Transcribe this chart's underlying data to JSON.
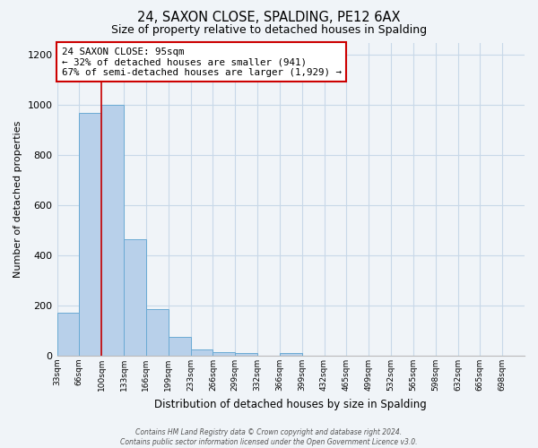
{
  "title": "24, SAXON CLOSE, SPALDING, PE12 6AX",
  "subtitle": "Size of property relative to detached houses in Spalding",
  "xlabel": "Distribution of detached houses by size in Spalding",
  "ylabel": "Number of detached properties",
  "bar_labels": [
    "33sqm",
    "66sqm",
    "100sqm",
    "133sqm",
    "166sqm",
    "199sqm",
    "233sqm",
    "266sqm",
    "299sqm",
    "332sqm",
    "366sqm",
    "399sqm",
    "432sqm",
    "465sqm",
    "499sqm",
    "532sqm",
    "565sqm",
    "598sqm",
    "632sqm",
    "665sqm",
    "698sqm"
  ],
  "bar_values": [
    170,
    970,
    1000,
    465,
    185,
    75,
    25,
    15,
    12,
    0,
    12,
    0,
    0,
    0,
    0,
    0,
    0,
    0,
    0,
    0,
    0
  ],
  "bar_color": "#b8d0ea",
  "bar_edge_color": "#6aaad4",
  "ylim": [
    0,
    1250
  ],
  "yticks": [
    0,
    200,
    400,
    600,
    800,
    1000,
    1200
  ],
  "annotation_title": "24 SAXON CLOSE: 95sqm",
  "annotation_line1": "← 32% of detached houses are smaller (941)",
  "annotation_line2": "67% of semi-detached houses are larger (1,929) →",
  "annotation_box_color": "#ffffff",
  "annotation_box_edge": "#cc0000",
  "footer_line1": "Contains HM Land Registry data © Crown copyright and database right 2024.",
  "footer_line2": "Contains public sector information licensed under the Open Government Licence v3.0.",
  "bin_width": 33,
  "bin_starts": [
    33,
    66,
    99,
    132,
    165,
    198,
    231,
    264,
    297,
    330,
    363,
    396,
    429,
    462,
    495,
    528,
    561,
    594,
    627,
    660,
    693
  ],
  "red_line_x": 99,
  "grid_color": "#c8d8e8",
  "bg_color": "#f0f4f8"
}
